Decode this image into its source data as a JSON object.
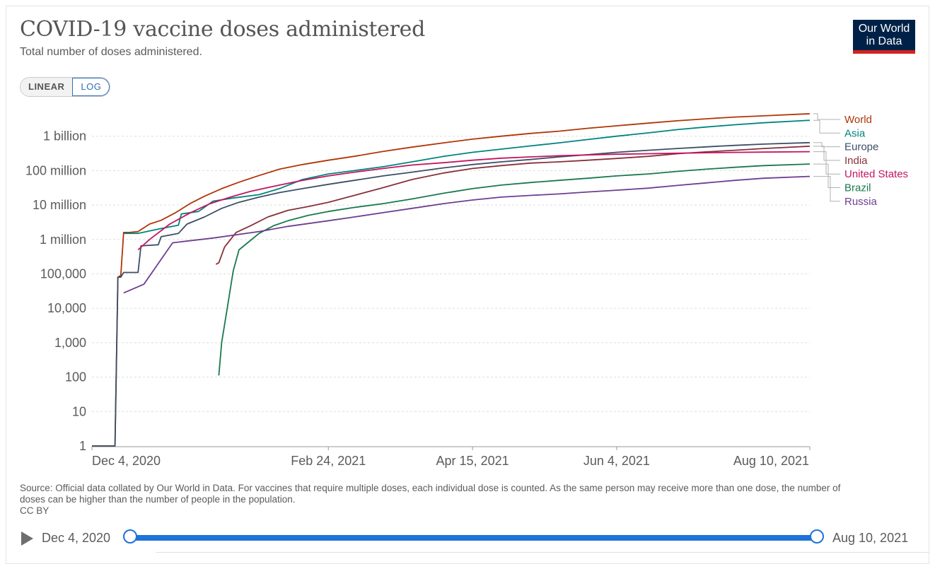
{
  "header": {
    "title": "COVID-19 vaccine doses administered",
    "subtitle": "Total number of doses administered.",
    "logo_line1": "Our World",
    "logo_line2": "in Data"
  },
  "scale_toggle": {
    "linear_label": "LINEAR",
    "log_label": "LOG",
    "active": "LOG"
  },
  "chart_data": {
    "type": "line",
    "title": "COVID-19 vaccine doses administered",
    "subtitle": "Total number of doses administered.",
    "y_scale": "log",
    "ylim": [
      1,
      5000000000
    ],
    "y_ticks": [
      {
        "value": 1,
        "label": "1"
      },
      {
        "value": 10,
        "label": "10"
      },
      {
        "value": 100,
        "label": "100"
      },
      {
        "value": 1000,
        "label": "1,000"
      },
      {
        "value": 10000,
        "label": "10,000"
      },
      {
        "value": 100000,
        "label": "100,000"
      },
      {
        "value": 1000000,
        "label": "1 million"
      },
      {
        "value": 10000000,
        "label": "10 million"
      },
      {
        "value": 100000000,
        "label": "100 million"
      },
      {
        "value": 1000000000,
        "label": "1 billion"
      }
    ],
    "xlim": [
      "2020-12-04",
      "2021-08-10"
    ],
    "x_ticks": [
      {
        "value": "2020-12-04",
        "label": "Dec 4, 2020"
      },
      {
        "value": "2021-02-24",
        "label": "Feb 24, 2021"
      },
      {
        "value": "2021-04-15",
        "label": "Apr 15, 2021"
      },
      {
        "value": "2021-06-04",
        "label": "Jun 4, 2021"
      },
      {
        "value": "2021-08-10",
        "label": "Aug 10, 2021"
      }
    ],
    "grid": true,
    "legend_placement": "right",
    "series": [
      {
        "name": "World",
        "color": "#b13507",
        "points": [
          [
            "2020-12-04",
            1
          ],
          [
            "2020-12-12",
            1
          ],
          [
            "2020-12-13",
            80000
          ],
          [
            "2020-12-14",
            90000
          ],
          [
            "2020-12-15",
            1600000
          ],
          [
            "2020-12-17",
            1600000
          ],
          [
            "2020-12-20",
            1700000
          ],
          [
            "2020-12-24",
            2800000
          ],
          [
            "2020-12-28",
            3600000
          ],
          [
            "2021-01-02",
            6000000
          ],
          [
            "2021-01-07",
            11000000
          ],
          [
            "2021-01-12",
            18000000
          ],
          [
            "2021-01-18",
            30000000
          ],
          [
            "2021-01-24",
            46000000
          ],
          [
            "2021-01-31",
            72000000
          ],
          [
            "2021-02-07",
            110000000
          ],
          [
            "2021-02-15",
            150000000
          ],
          [
            "2021-02-24",
            200000000
          ],
          [
            "2021-03-05",
            260000000
          ],
          [
            "2021-03-15",
            360000000
          ],
          [
            "2021-03-25",
            480000000
          ],
          [
            "2021-04-05",
            640000000
          ],
          [
            "2021-04-15",
            820000000
          ],
          [
            "2021-04-25",
            1000000000
          ],
          [
            "2021-05-05",
            1200000000
          ],
          [
            "2021-05-15",
            1400000000
          ],
          [
            "2021-05-25",
            1700000000
          ],
          [
            "2021-06-04",
            2000000000
          ],
          [
            "2021-06-15",
            2400000000
          ],
          [
            "2021-06-25",
            2800000000
          ],
          [
            "2021-07-05",
            3200000000
          ],
          [
            "2021-07-15",
            3600000000
          ],
          [
            "2021-07-25",
            3900000000
          ],
          [
            "2021-08-10",
            4500000000
          ]
        ]
      },
      {
        "name": "Asia",
        "color": "#00847e",
        "points": [
          [
            "2020-12-15",
            1500000
          ],
          [
            "2020-12-20",
            1500000
          ],
          [
            "2020-12-27",
            2000000
          ],
          [
            "2021-01-03",
            2600000
          ],
          [
            "2021-01-04",
            5500000
          ],
          [
            "2021-01-10",
            6500000
          ],
          [
            "2021-01-15",
            13000000
          ],
          [
            "2021-01-22",
            16000000
          ],
          [
            "2021-01-31",
            20000000
          ],
          [
            "2021-02-07",
            30000000
          ],
          [
            "2021-02-15",
            55000000
          ],
          [
            "2021-02-24",
            80000000
          ],
          [
            "2021-03-05",
            100000000
          ],
          [
            "2021-03-15",
            130000000
          ],
          [
            "2021-03-25",
            180000000
          ],
          [
            "2021-04-05",
            260000000
          ],
          [
            "2021-04-15",
            340000000
          ],
          [
            "2021-04-25",
            420000000
          ],
          [
            "2021-05-05",
            520000000
          ],
          [
            "2021-05-15",
            640000000
          ],
          [
            "2021-05-25",
            800000000
          ],
          [
            "2021-06-04",
            1000000000
          ],
          [
            "2021-06-15",
            1250000000
          ],
          [
            "2021-06-25",
            1550000000
          ],
          [
            "2021-07-05",
            1850000000
          ],
          [
            "2021-07-15",
            2150000000
          ],
          [
            "2021-07-25",
            2450000000
          ],
          [
            "2021-08-10",
            2900000000
          ]
        ]
      },
      {
        "name": "Europe",
        "color": "#3c4e66",
        "points": [
          [
            "2020-12-04",
            1
          ],
          [
            "2020-12-12",
            1
          ],
          [
            "2020-12-13",
            80000
          ],
          [
            "2020-12-14",
            80000
          ],
          [
            "2020-12-15",
            110000
          ],
          [
            "2020-12-20",
            110000
          ],
          [
            "2020-12-21",
            650000
          ],
          [
            "2020-12-27",
            700000
          ],
          [
            "2020-12-28",
            1200000
          ],
          [
            "2021-01-03",
            1500000
          ],
          [
            "2021-01-06",
            2800000
          ],
          [
            "2021-01-12",
            4500000
          ],
          [
            "2021-01-18",
            8000000
          ],
          [
            "2021-01-24",
            12000000
          ],
          [
            "2021-01-31",
            17000000
          ],
          [
            "2021-02-07",
            23000000
          ],
          [
            "2021-02-15",
            30000000
          ],
          [
            "2021-02-24",
            40000000
          ],
          [
            "2021-03-05",
            52000000
          ],
          [
            "2021-03-15",
            70000000
          ],
          [
            "2021-03-25",
            90000000
          ],
          [
            "2021-04-05",
            120000000
          ],
          [
            "2021-04-15",
            150000000
          ],
          [
            "2021-04-25",
            180000000
          ],
          [
            "2021-05-05",
            210000000
          ],
          [
            "2021-05-15",
            250000000
          ],
          [
            "2021-05-25",
            290000000
          ],
          [
            "2021-06-04",
            340000000
          ],
          [
            "2021-06-15",
            390000000
          ],
          [
            "2021-06-25",
            440000000
          ],
          [
            "2021-07-05",
            490000000
          ],
          [
            "2021-07-15",
            540000000
          ],
          [
            "2021-07-25",
            590000000
          ],
          [
            "2021-08-10",
            650000000
          ]
        ]
      },
      {
        "name": "India",
        "color": "#883039",
        "points": [
          [
            "2021-01-16",
            190000
          ],
          [
            "2021-01-17",
            210000
          ],
          [
            "2021-01-19",
            600000
          ],
          [
            "2021-01-23",
            1600000
          ],
          [
            "2021-01-28",
            2500000
          ],
          [
            "2021-02-03",
            4500000
          ],
          [
            "2021-02-10",
            7000000
          ],
          [
            "2021-02-17",
            9000000
          ],
          [
            "2021-02-24",
            12000000
          ],
          [
            "2021-03-05",
            19000000
          ],
          [
            "2021-03-15",
            32000000
          ],
          [
            "2021-03-25",
            55000000
          ],
          [
            "2021-04-05",
            85000000
          ],
          [
            "2021-04-15",
            115000000
          ],
          [
            "2021-04-25",
            140000000
          ],
          [
            "2021-05-05",
            165000000
          ],
          [
            "2021-05-15",
            180000000
          ],
          [
            "2021-05-25",
            200000000
          ],
          [
            "2021-06-04",
            225000000
          ],
          [
            "2021-06-15",
            260000000
          ],
          [
            "2021-06-25",
            310000000
          ],
          [
            "2021-07-05",
            350000000
          ],
          [
            "2021-07-15",
            390000000
          ],
          [
            "2021-07-25",
            440000000
          ],
          [
            "2021-08-10",
            510000000
          ]
        ]
      },
      {
        "name": "United States",
        "color": "#c41561",
        "points": [
          [
            "2020-12-20",
            500000
          ],
          [
            "2020-12-24",
            1000000
          ],
          [
            "2020-12-31",
            2800000
          ],
          [
            "2021-01-07",
            5900000
          ],
          [
            "2021-01-14",
            11000000
          ],
          [
            "2021-01-21",
            17000000
          ],
          [
            "2021-01-28",
            25000000
          ],
          [
            "2021-02-07",
            38000000
          ],
          [
            "2021-02-15",
            52000000
          ],
          [
            "2021-02-24",
            70000000
          ],
          [
            "2021-03-05",
            90000000
          ],
          [
            "2021-03-15",
            115000000
          ],
          [
            "2021-03-25",
            145000000
          ],
          [
            "2021-04-05",
            170000000
          ],
          [
            "2021-04-15",
            200000000
          ],
          [
            "2021-04-25",
            230000000
          ],
          [
            "2021-05-05",
            250000000
          ],
          [
            "2021-05-15",
            270000000
          ],
          [
            "2021-05-25",
            285000000
          ],
          [
            "2021-06-04",
            300000000
          ],
          [
            "2021-06-15",
            310000000
          ],
          [
            "2021-06-25",
            320000000
          ],
          [
            "2021-07-05",
            330000000
          ],
          [
            "2021-07-15",
            338000000
          ],
          [
            "2021-07-25",
            345000000
          ],
          [
            "2021-08-10",
            355000000
          ]
        ]
      },
      {
        "name": "Brazil",
        "color": "#18794e",
        "points": [
          [
            "2021-01-17",
            112
          ],
          [
            "2021-01-18",
            1000
          ],
          [
            "2021-01-20",
            11000
          ],
          [
            "2021-01-22",
            120000
          ],
          [
            "2021-01-24",
            500000
          ],
          [
            "2021-01-27",
            800000
          ],
          [
            "2021-01-31",
            1500000
          ],
          [
            "2021-02-05",
            2500000
          ],
          [
            "2021-02-10",
            3500000
          ],
          [
            "2021-02-17",
            5000000
          ],
          [
            "2021-02-24",
            6500000
          ],
          [
            "2021-03-05",
            8500000
          ],
          [
            "2021-03-15",
            11000000
          ],
          [
            "2021-03-25",
            15000000
          ],
          [
            "2021-04-05",
            22000000
          ],
          [
            "2021-04-15",
            30000000
          ],
          [
            "2021-04-25",
            38000000
          ],
          [
            "2021-05-05",
            45000000
          ],
          [
            "2021-05-15",
            52000000
          ],
          [
            "2021-05-25",
            60000000
          ],
          [
            "2021-06-04",
            70000000
          ],
          [
            "2021-06-15",
            80000000
          ],
          [
            "2021-06-25",
            95000000
          ],
          [
            "2021-07-05",
            110000000
          ],
          [
            "2021-07-15",
            125000000
          ],
          [
            "2021-07-25",
            140000000
          ],
          [
            "2021-08-10",
            155000000
          ]
        ]
      },
      {
        "name": "Russia",
        "color": "#6d3e91",
        "points": [
          [
            "2020-12-15",
            28000
          ],
          [
            "2020-12-22",
            50000
          ],
          [
            "2021-01-01",
            800000
          ],
          [
            "2021-01-15",
            1100000
          ],
          [
            "2021-01-31",
            1700000
          ],
          [
            "2021-02-10",
            2400000
          ],
          [
            "2021-02-24",
            3500000
          ],
          [
            "2021-03-05",
            4500000
          ],
          [
            "2021-03-15",
            6000000
          ],
          [
            "2021-03-25",
            8000000
          ],
          [
            "2021-04-05",
            11000000
          ],
          [
            "2021-04-15",
            14000000
          ],
          [
            "2021-04-25",
            17000000
          ],
          [
            "2021-05-05",
            19000000
          ],
          [
            "2021-05-15",
            21000000
          ],
          [
            "2021-05-25",
            24000000
          ],
          [
            "2021-06-04",
            27000000
          ],
          [
            "2021-06-15",
            31000000
          ],
          [
            "2021-06-25",
            37000000
          ],
          [
            "2021-07-05",
            44000000
          ],
          [
            "2021-07-15",
            52000000
          ],
          [
            "2021-07-25",
            60000000
          ],
          [
            "2021-08-10",
            68000000
          ]
        ]
      }
    ]
  },
  "footer": {
    "source": "Source: Official data collated by Our World in Data. For vaccines that require multiple doses, each individual dose is counted. As the same person may receive more than one dose, the number of doses can be higher than the number of people in the population.",
    "license": "CC BY"
  },
  "timeline": {
    "start_label": "Dec 4, 2020",
    "end_label": "Aug 10, 2021"
  }
}
